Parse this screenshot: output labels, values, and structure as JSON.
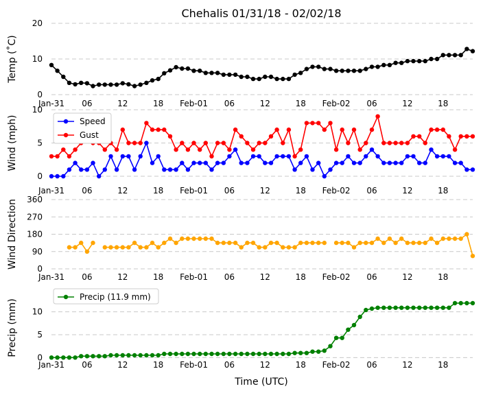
{
  "chart_data": {
    "title": "Chehalis 01/31/18 - 02/02/18",
    "xlabel": "Time (UTC)",
    "x_hours": [
      0,
      1,
      2,
      3,
      4,
      5,
      6,
      7,
      8,
      9,
      10,
      11,
      12,
      13,
      14,
      15,
      16,
      17,
      18,
      19,
      20,
      21,
      22,
      23,
      24,
      25,
      26,
      27,
      28,
      29,
      30,
      31,
      32,
      33,
      34,
      35,
      36,
      37,
      38,
      39,
      40,
      41,
      42,
      43,
      44,
      45,
      46,
      47,
      48,
      49,
      50,
      51,
      52,
      53,
      54,
      55,
      56,
      57,
      58,
      59,
      60,
      61,
      62,
      63,
      64,
      65,
      66,
      67,
      68,
      69,
      70,
      71
    ],
    "x_ticks": [
      {
        "hour": 0,
        "label": "Jan-31"
      },
      {
        "hour": 6,
        "label": "06"
      },
      {
        "hour": 12,
        "label": "12"
      },
      {
        "hour": 18,
        "label": "18"
      },
      {
        "hour": 24,
        "label": "Feb-01"
      },
      {
        "hour": 30,
        "label": "06"
      },
      {
        "hour": 36,
        "label": "12"
      },
      {
        "hour": 42,
        "label": "18"
      },
      {
        "hour": 48,
        "label": "Feb-02"
      },
      {
        "hour": 54,
        "label": "06"
      },
      {
        "hour": 60,
        "label": "12"
      },
      {
        "hour": 66,
        "label": "18"
      }
    ],
    "panels": [
      {
        "type": "line",
        "ylabel": "Temp (˚C)",
        "ylim": [
          0,
          20
        ],
        "yticks": [
          0,
          10,
          20
        ],
        "series": [
          {
            "name": "Temp",
            "color": "#000000",
            "values": [
              8.3,
              6.7,
              5.0,
              3.3,
              2.9,
              3.3,
              3.2,
              2.4,
              2.8,
              2.8,
              2.8,
              2.8,
              3.2,
              2.9,
              2.4,
              2.8,
              3.3,
              4.0,
              4.4,
              6.0,
              6.8,
              7.7,
              7.3,
              7.3,
              6.7,
              6.7,
              6.1,
              6.1,
              6.1,
              5.6,
              5.6,
              5.6,
              5.0,
              5.0,
              4.4,
              4.4,
              5.0,
              5.0,
              4.4,
              4.4,
              4.4,
              5.6,
              6.1,
              7.2,
              7.8,
              7.8,
              7.2,
              7.2,
              6.7,
              6.7,
              6.7,
              6.7,
              6.7,
              7.2,
              7.8,
              7.8,
              8.3,
              8.3,
              8.9,
              8.9,
              9.4,
              9.4,
              9.4,
              9.4,
              10.0,
              10.0,
              11.1,
              11.1,
              11.1,
              11.1,
              12.8,
              12.2
            ]
          }
        ]
      },
      {
        "type": "line",
        "ylabel": "Wind (mph)",
        "ylim": [
          0,
          10
        ],
        "yticks": [
          0,
          5,
          10
        ],
        "legend": "top-left",
        "series": [
          {
            "name": "Speed",
            "color": "#0000ff",
            "values": [
              0,
              0,
              0,
              1,
              2,
              1,
              1,
              2,
              0,
              1,
              3,
              1,
              3,
              3,
              1,
              3,
              5,
              2,
              3,
              1,
              1,
              1,
              2,
              1,
              2,
              2,
              2,
              1,
              2,
              2,
              3,
              4,
              2,
              2,
              3,
              3,
              2,
              2,
              3,
              3,
              3,
              1,
              2,
              3,
              1,
              2,
              0,
              1,
              2,
              2,
              3,
              2,
              2,
              3,
              4,
              3,
              2,
              2,
              2,
              2,
              3,
              3,
              2,
              2,
              4,
              3,
              3,
              3,
              2,
              2,
              1,
              1
            ]
          },
          {
            "name": "Gust",
            "color": "#ff0000",
            "values": [
              3,
              3,
              4,
              3,
              4,
              5,
              6,
              5,
              5,
              4,
              5,
              4,
              7,
              5,
              5,
              5,
              8,
              7,
              7,
              7,
              6,
              4,
              5,
              4,
              5,
              4,
              5,
              3,
              5,
              5,
              4,
              7,
              6,
              5,
              4,
              5,
              5,
              6,
              7,
              5,
              7,
              3,
              4,
              8,
              8,
              8,
              7,
              8,
              4,
              7,
              5,
              7,
              4,
              5,
              7,
              9,
              5,
              5,
              5,
              5,
              5,
              6,
              6,
              5,
              7,
              7,
              7,
              6,
              4,
              6,
              6,
              6
            ]
          }
        ]
      },
      {
        "type": "line",
        "ylabel": "Wind Direction",
        "ylim": [
          0,
          360
        ],
        "yticks": [
          0,
          90,
          180,
          270,
          360
        ],
        "series": [
          {
            "name": "Direction",
            "color": "#ffa500",
            "values": [
              null,
              null,
              null,
              112,
              112,
              135,
              90,
              135,
              null,
              112,
              112,
              112,
              112,
              112,
              135,
              112,
              112,
              135,
              112,
              135,
              157,
              135,
              157,
              157,
              157,
              157,
              157,
              157,
              135,
              135,
              135,
              135,
              112,
              135,
              135,
              112,
              112,
              135,
              135,
              112,
              112,
              112,
              135,
              135,
              135,
              135,
              135,
              null,
              135,
              135,
              135,
              112,
              135,
              135,
              135,
              157,
              135,
              157,
              135,
              157,
              135,
              135,
              135,
              135,
              157,
              135,
              157,
              157,
              157,
              157,
              180,
              67
            ]
          }
        ]
      },
      {
        "type": "line",
        "ylabel": "Precip (mm)",
        "ylim": [
          -1,
          14
        ],
        "yticks": [
          0,
          5,
          10
        ],
        "legend": "top-left",
        "series": [
          {
            "name": "Precip (11.9 mm)",
            "color": "#008000",
            "values": [
              0,
              0,
              0,
              0,
              0,
              0.3,
              0.3,
              0.3,
              0.3,
              0.3,
              0.5,
              0.5,
              0.5,
              0.5,
              0.5,
              0.5,
              0.5,
              0.5,
              0.5,
              0.8,
              0.8,
              0.8,
              0.8,
              0.8,
              0.8,
              0.8,
              0.8,
              0.8,
              0.8,
              0.8,
              0.8,
              0.8,
              0.8,
              0.8,
              0.8,
              0.8,
              0.8,
              0.8,
              0.8,
              0.8,
              0.8,
              1.0,
              1.0,
              1.0,
              1.3,
              1.3,
              1.5,
              2.5,
              4.3,
              4.3,
              6.1,
              7.1,
              8.9,
              10.4,
              10.7,
              10.9,
              10.9,
              10.9,
              10.9,
              10.9,
              10.9,
              10.9,
              10.9,
              10.9,
              10.9,
              10.9,
              10.9,
              10.9,
              11.9,
              11.9,
              11.9,
              11.9
            ]
          }
        ]
      }
    ]
  }
}
